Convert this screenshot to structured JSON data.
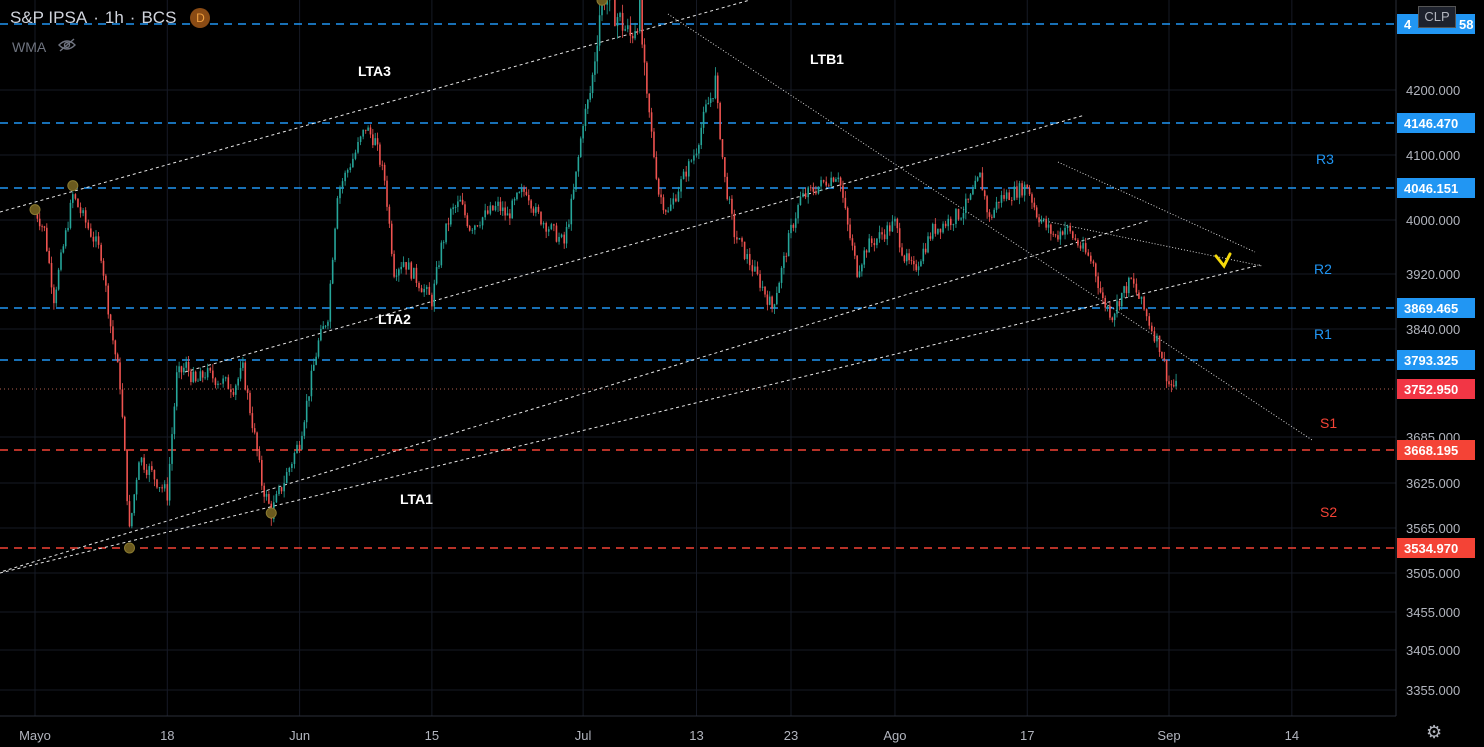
{
  "header": {
    "symbol": "S&P IPSA",
    "interval": "1h",
    "exchange": "BCS",
    "badge": "D"
  },
  "indicator": {
    "label": "WMA"
  },
  "clp_label": "CLP",
  "colors": {
    "bull": "#26a69a",
    "bear": "#ef5350",
    "resistance": "#2196f3",
    "support": "#f44336",
    "price_tag": "#f23645",
    "label_blue": "#2196f3",
    "label_red": "#f44336",
    "pivot": "#6b5a1e"
  },
  "chart_data": {
    "type": "candlestick",
    "title": "S&P IPSA · 1h · BCS",
    "y_axis_ticks": [
      4200,
      4100,
      4000,
      3920,
      3840,
      3685,
      3625,
      3565,
      3505,
      3455,
      3405,
      3355
    ],
    "y_axis_tick_labels": [
      "4200.000",
      "4100.000",
      "4000.000",
      "3920.000",
      "3840.000",
      "3685.000",
      "3625.000",
      "3565.000",
      "3505.000",
      "3455.000",
      "3405.000",
      "3355.000"
    ],
    "x_axis_ticks": [
      "Mayo",
      "18",
      "Jun",
      "15",
      "Jul",
      "13",
      "23",
      "Ago",
      "17",
      "Sep",
      "14"
    ],
    "horizontal_levels": [
      {
        "value": 4250,
        "label": "4",
        "label_suffix": "58",
        "kind": "resistance"
      },
      {
        "value": 4146.47,
        "label": "4146.470",
        "kind": "resistance"
      },
      {
        "value": 4046.151,
        "label": "4046.151",
        "kind": "resistance"
      },
      {
        "value": 3869.465,
        "label": "3869.465",
        "kind": "resistance"
      },
      {
        "value": 3793.325,
        "label": "3793.325",
        "kind": "resistance"
      },
      {
        "value": 3668.195,
        "label": "3668.195",
        "kind": "support"
      },
      {
        "value": 3534.97,
        "label": "3534.970",
        "kind": "support"
      }
    ],
    "last_price": {
      "value": 3752.95,
      "label": "3752.950"
    },
    "trendline_labels": [
      "LTA3",
      "LTB1",
      "LTA2",
      "LTA1"
    ],
    "zone_labels": [
      "R3",
      "R2",
      "R1",
      "S1",
      "S2"
    ],
    "price_path": [
      [
        "2020-05-04",
        4015
      ],
      [
        "2020-05-05",
        3985
      ],
      [
        "2020-05-06",
        3885
      ],
      [
        "2020-05-07",
        3960
      ],
      [
        "2020-05-08",
        4035
      ],
      [
        "2020-05-11",
        3950
      ],
      [
        "2020-05-12",
        3845
      ],
      [
        "2020-05-13",
        3760
      ],
      [
        "2020-05-14",
        3560
      ],
      [
        "2020-05-15",
        3660
      ],
      [
        "2020-05-18",
        3610
      ],
      [
        "2020-05-19",
        3770
      ],
      [
        "2020-05-20",
        3785
      ],
      [
        "2020-05-21",
        3760
      ],
      [
        "2020-05-22",
        3775
      ],
      [
        "2020-05-25",
        3755
      ],
      [
        "2020-05-26",
        3780
      ],
      [
        "2020-05-27",
        3705
      ],
      [
        "2020-05-28",
        3625
      ],
      [
        "2020-05-29",
        3585
      ],
      [
        "2020-06-01",
        3680
      ],
      [
        "2020-06-02",
        3750
      ],
      [
        "2020-06-03",
        3820
      ],
      [
        "2020-06-04",
        3860
      ],
      [
        "2020-06-05",
        4040
      ],
      [
        "2020-06-08",
        4140
      ],
      [
        "2020-06-09",
        4120
      ],
      [
        "2020-06-10",
        4060
      ],
      [
        "2020-06-11",
        3925
      ],
      [
        "2020-06-12",
        3940
      ],
      [
        "2020-06-15",
        3880
      ],
      [
        "2020-06-16",
        3960
      ],
      [
        "2020-06-17",
        4010
      ],
      [
        "2020-06-18",
        4025
      ],
      [
        "2020-06-19",
        3990
      ],
      [
        "2020-06-22",
        4020
      ],
      [
        "2020-06-23",
        4005
      ],
      [
        "2020-06-24",
        4030
      ],
      [
        "2020-06-25",
        4045
      ],
      [
        "2020-06-26",
        4010
      ],
      [
        "2020-06-29",
        3965
      ],
      [
        "2020-06-30",
        4040
      ],
      [
        "2020-07-01",
        4150
      ],
      [
        "2020-07-02",
        4210
      ],
      [
        "2020-07-03",
        4275
      ],
      [
        "2020-07-06",
        4240
      ],
      [
        "2020-07-07",
        4260
      ],
      [
        "2020-07-08",
        4160
      ],
      [
        "2020-07-09",
        4040
      ],
      [
        "2020-07-10",
        4010
      ],
      [
        "2020-07-13",
        4110
      ],
      [
        "2020-07-14",
        4170
      ],
      [
        "2020-07-15",
        4205
      ],
      [
        "2020-07-16",
        4060
      ],
      [
        "2020-07-17",
        3980
      ],
      [
        "2020-07-20",
        3900
      ],
      [
        "2020-07-21",
        3870
      ],
      [
        "2020-07-22",
        3925
      ],
      [
        "2020-07-23",
        3985
      ],
      [
        "2020-07-24",
        4030
      ],
      [
        "2020-07-27",
        4060
      ],
      [
        "2020-07-28",
        4070
      ],
      [
        "2020-07-29",
        3990
      ],
      [
        "2020-07-30",
        3925
      ],
      [
        "2020-07-31",
        3960
      ],
      [
        "2020-08-03",
        3995
      ],
      [
        "2020-08-04",
        3945
      ],
      [
        "2020-08-05",
        3925
      ],
      [
        "2020-08-06",
        3955
      ],
      [
        "2020-08-07",
        3985
      ],
      [
        "2020-08-10",
        4010
      ],
      [
        "2020-08-11",
        4030
      ],
      [
        "2020-08-12",
        4065
      ],
      [
        "2020-08-13",
        4000
      ],
      [
        "2020-08-14",
        4030
      ],
      [
        "2020-08-17",
        4050
      ],
      [
        "2020-08-18",
        4010
      ],
      [
        "2020-08-19",
        3990
      ],
      [
        "2020-08-20",
        3975
      ],
      [
        "2020-08-21",
        3990
      ],
      [
        "2020-08-24",
        3935
      ],
      [
        "2020-08-25",
        3880
      ],
      [
        "2020-08-26",
        3860
      ],
      [
        "2020-08-27",
        3890
      ],
      [
        "2020-08-28",
        3910
      ],
      [
        "2020-08-31",
        3815
      ],
      [
        "2020-09-01",
        3760
      ],
      [
        "2020-09-02",
        3752.95
      ]
    ],
    "ylim": [
      3320,
      4270
    ],
    "grid": true
  }
}
